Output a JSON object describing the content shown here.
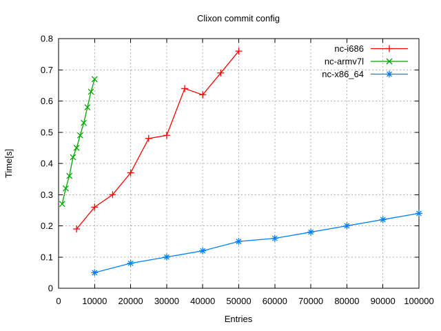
{
  "window": {
    "background": "#ffffff"
  },
  "chart_data": {
    "type": "line",
    "title": "Clixon commit config",
    "xlabel": "Entries",
    "ylabel": "Time[s]",
    "xlim": [
      0,
      100000
    ],
    "ylim": [
      0,
      0.8
    ],
    "xticks": [
      0,
      10000,
      20000,
      30000,
      40000,
      50000,
      60000,
      70000,
      80000,
      90000,
      100000
    ],
    "yticks": [
      "0",
      "0.1",
      "0.2",
      "0.3",
      "0.4",
      "0.5",
      "0.6",
      "0.7",
      "0.8"
    ],
    "grid": true,
    "grid_color": "#b0b0b0",
    "axis_color": "#000000",
    "legend_position": "top-right-inside",
    "series": [
      {
        "name": "nc-i686",
        "color": "#ff0000",
        "marker": "plus",
        "x": [
          5000,
          10000,
          15000,
          20000,
          25000,
          30000,
          35000,
          40000,
          45000,
          50000
        ],
        "y": [
          0.19,
          0.26,
          0.3,
          0.37,
          0.48,
          0.49,
          0.64,
          0.62,
          0.69,
          0.76
        ]
      },
      {
        "name": "nc-armv7l",
        "color": "#00a400",
        "marker": "cross",
        "x": [
          1000,
          2000,
          3000,
          4000,
          5000,
          6000,
          7000,
          8000,
          9000,
          10000
        ],
        "y": [
          0.27,
          0.32,
          0.36,
          0.42,
          0.45,
          0.49,
          0.53,
          0.58,
          0.63,
          0.67
        ]
      },
      {
        "name": "nc-x86_64",
        "color": "#0080ff",
        "marker": "asterisk",
        "x": [
          10000,
          20000,
          30000,
          40000,
          50000,
          60000,
          70000,
          80000,
          90000,
          100000
        ],
        "y": [
          0.05,
          0.08,
          0.1,
          0.12,
          0.15,
          0.16,
          0.18,
          0.2,
          0.22,
          0.24
        ]
      }
    ]
  }
}
